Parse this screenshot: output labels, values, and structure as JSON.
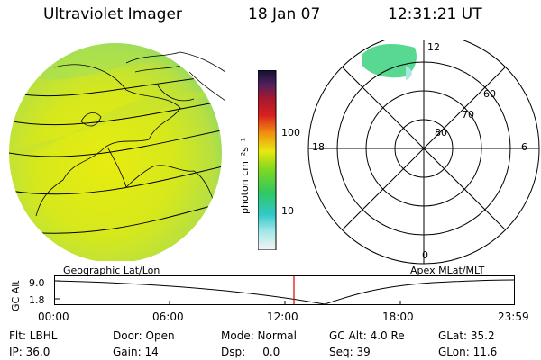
{
  "header": {
    "instrument": "Ultraviolet Imager",
    "date": "18 Jan 07",
    "time": "12:31:21 UT"
  },
  "colorbar": {
    "unit_label": "photon cm⁻²s⁻¹",
    "ticks": [
      "100",
      "10"
    ]
  },
  "polar_plot": {
    "mlt_labels": [
      "12",
      "18",
      "6",
      "0"
    ],
    "mlat_labels": [
      "60",
      "70",
      "80"
    ]
  },
  "panel_titles": {
    "left": "Geographic Lat/Lon",
    "right": "Apex MLat/MLT"
  },
  "alt_plot": {
    "axis_label": "GC Alt",
    "y_ticks": [
      "9.0",
      "1.8"
    ],
    "x_ticks": [
      "00:00",
      "06:00",
      "12:00",
      "18:00",
      "23:59"
    ]
  },
  "info": {
    "flt": "Flt: LBHL",
    "door": "Door: Open",
    "mode": "Mode: Normal",
    "gc_alt": "GC Alt: 4.0 Re",
    "glat": "GLat: 35.2",
    "ip": "IP: 36.0",
    "gain": "Gain: 14",
    "dsp": "Dsp:     0.0",
    "seq": "Seq: 39",
    "glon": "GLon: 11.6"
  }
}
